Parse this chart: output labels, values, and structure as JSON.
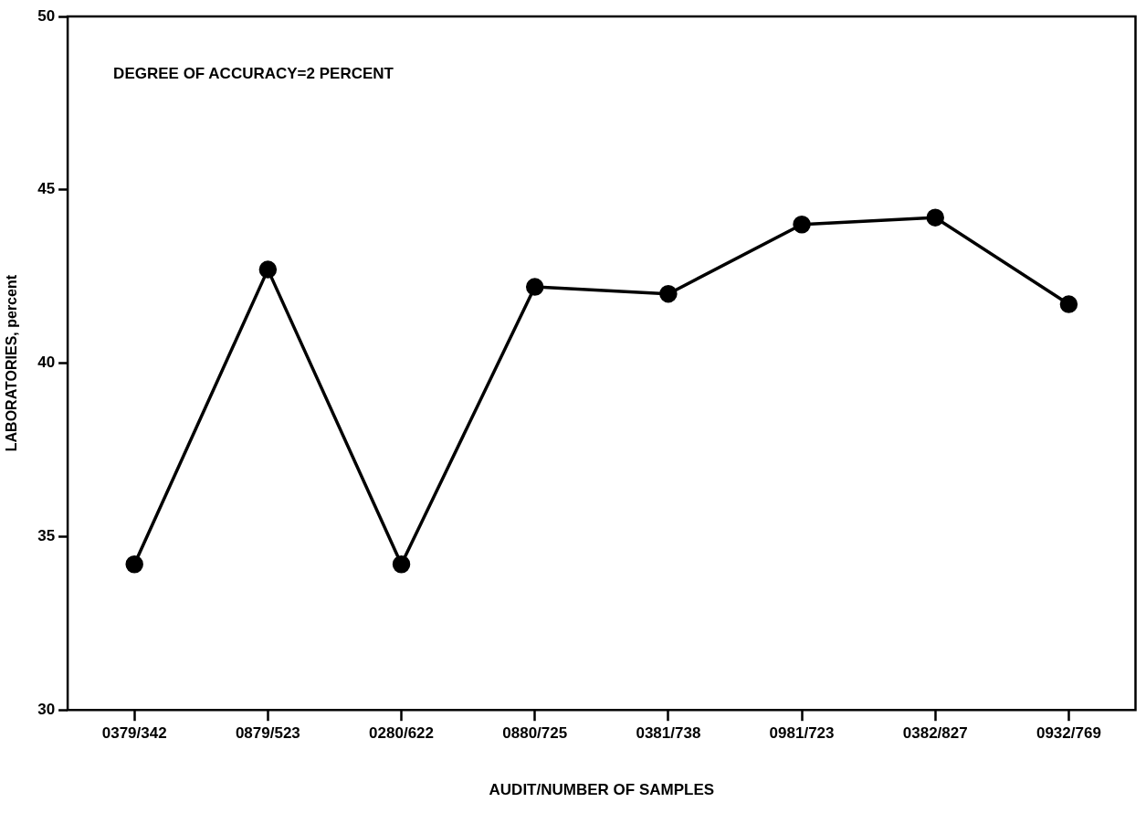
{
  "chart_data": {
    "type": "line",
    "xlabel": "AUDIT/NUMBER OF SAMPLES",
    "ylabel": "LABORATORIES, percent",
    "annotations": [
      "DEGREE OF ACCURACY=2 PERCENT"
    ],
    "categories": [
      "0379/342",
      "0879/523",
      "0280/622",
      "0880/725",
      "0381/738",
      "0981/723",
      "0382/827",
      "0932/769"
    ],
    "series": [
      {
        "color": "#000000",
        "values": [
          34.2,
          42.7,
          34.2,
          42.2,
          42.0,
          44.0,
          44.2,
          41.7
        ]
      }
    ],
    "ylim": [
      30,
      50
    ],
    "yticks": [
      30,
      35,
      40,
      45,
      50
    ],
    "grid": false,
    "legend": false,
    "marker": "circle",
    "line_style": "solid"
  }
}
